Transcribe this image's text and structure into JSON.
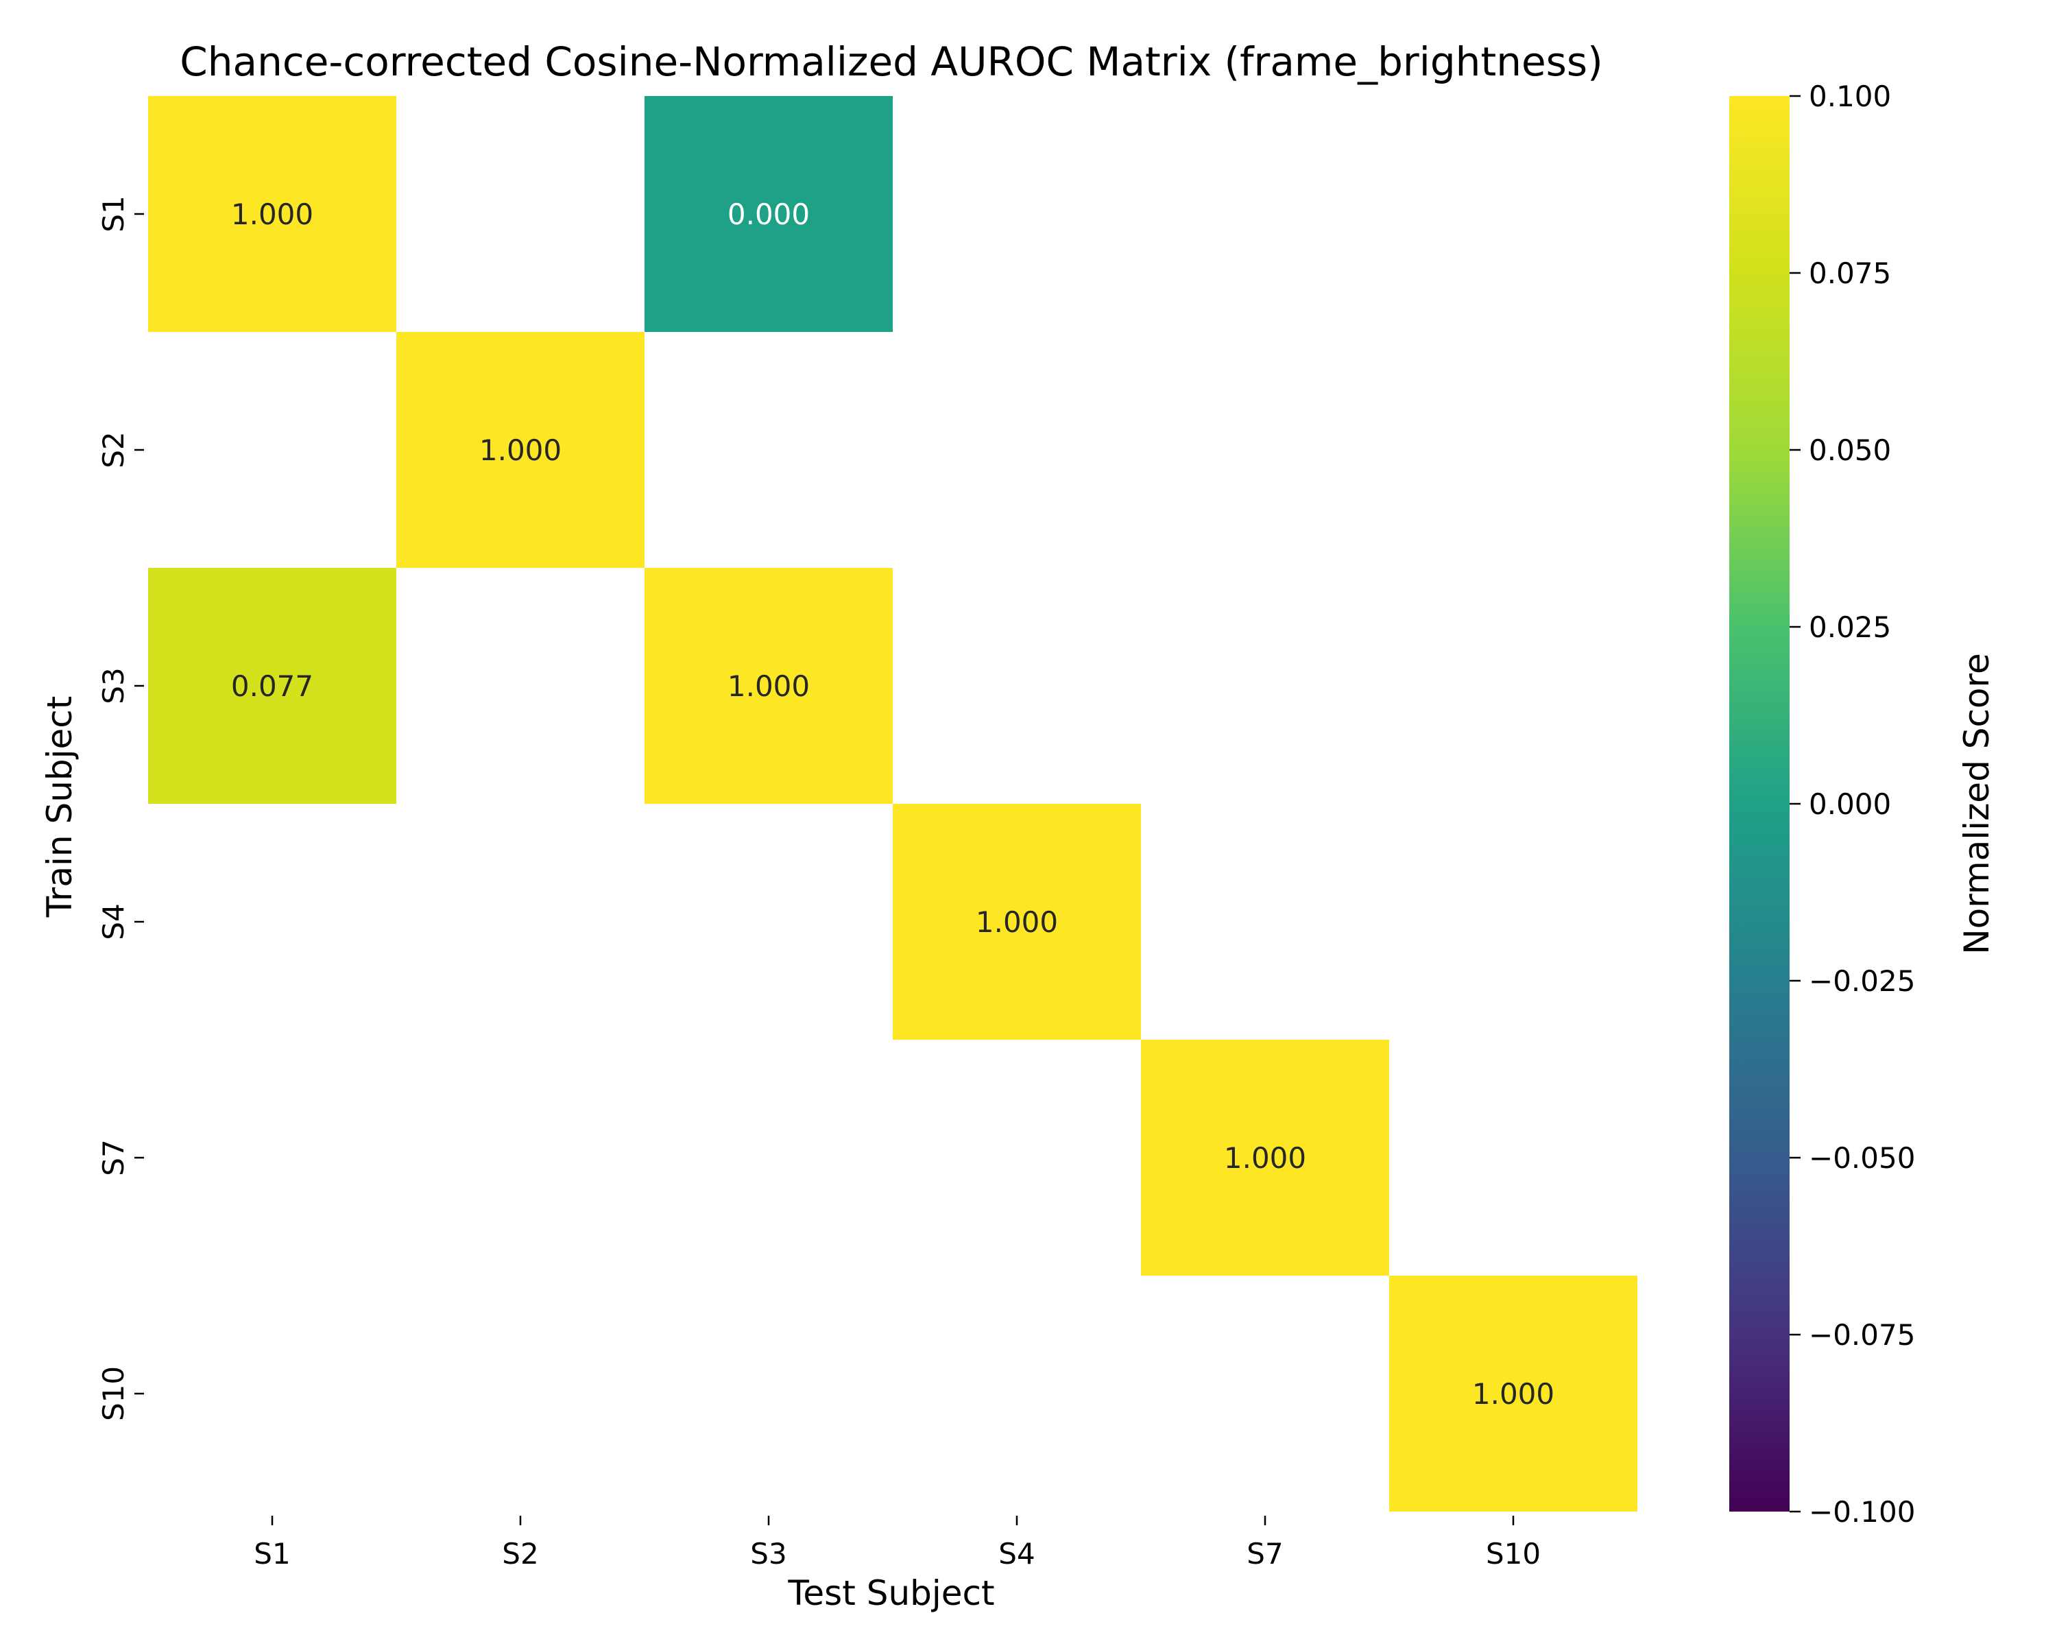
{
  "chart_data": {
    "type": "heatmap",
    "title": "Chance-corrected Cosine-Normalized AUROC Matrix (frame_brightness)",
    "xlabel": "Test Subject",
    "ylabel": "Train Subject",
    "x_categories": [
      "S1",
      "S2",
      "S3",
      "S4",
      "S7",
      "S10"
    ],
    "y_categories": [
      "S1",
      "S2",
      "S3",
      "S4",
      "S7",
      "S10"
    ],
    "cells": [
      {
        "row": "S1",
        "col": "S1",
        "value": 1.0,
        "label": "1.000"
      },
      {
        "row": "S1",
        "col": "S3",
        "value": 0.0,
        "label": "0.000"
      },
      {
        "row": "S2",
        "col": "S2",
        "value": 1.0,
        "label": "1.000"
      },
      {
        "row": "S3",
        "col": "S1",
        "value": 0.077,
        "label": "0.077"
      },
      {
        "row": "S3",
        "col": "S3",
        "value": 1.0,
        "label": "1.000"
      },
      {
        "row": "S4",
        "col": "S4",
        "value": 1.0,
        "label": "1.000"
      },
      {
        "row": "S7",
        "col": "S7",
        "value": 1.0,
        "label": "1.000"
      },
      {
        "row": "S10",
        "col": "S10",
        "value": 1.0,
        "label": "1.000"
      }
    ],
    "colorbar": {
      "label": "Normalized Score",
      "range": [
        -0.1,
        0.1
      ],
      "ticks": [
        "0.100",
        "0.075",
        "0.050",
        "0.025",
        "0.000",
        "−0.025",
        "−0.050",
        "−0.075",
        "−0.100"
      ],
      "colormap": "viridis"
    },
    "grid": false,
    "legend": "colorbar-right"
  }
}
